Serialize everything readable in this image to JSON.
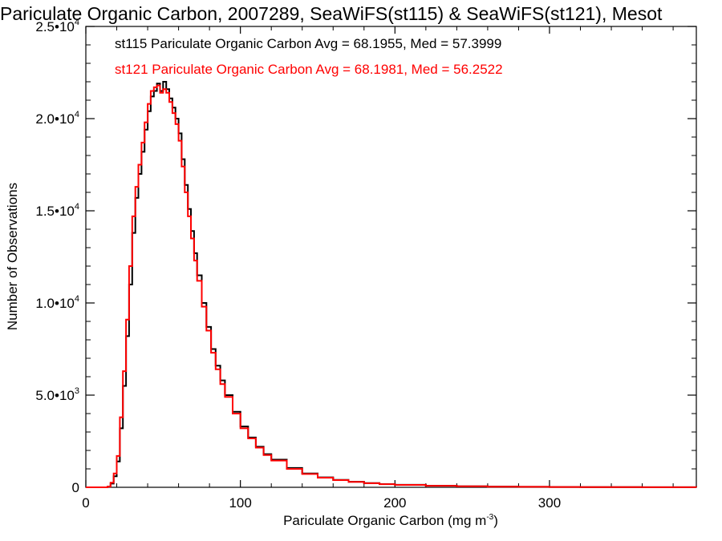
{
  "chart_data": {
    "type": "line",
    "title": "Pariculate Organic Carbon, 2007289, SeaWiFS(st115) & SeaWiFS(st121), Mesot",
    "xlabel": "Pariculate Organic Carbon (mg m",
    "xlabel_sup": "-3",
    "xlabel_suffix": ")",
    "ylabel": "Number of Observations",
    "xlim": [
      0,
      395
    ],
    "ylim": [
      0,
      25000
    ],
    "x_ticks": [
      {
        "value": 0,
        "label": "0"
      },
      {
        "value": 100,
        "label": "100"
      },
      {
        "value": 200,
        "label": "200"
      },
      {
        "value": 300,
        "label": "300"
      }
    ],
    "y_ticks": [
      {
        "value": 0,
        "mant": "0",
        "exp": ""
      },
      {
        "value": 5000,
        "mant": "5.0•10",
        "exp": "3"
      },
      {
        "value": 10000,
        "mant": "1.0•10",
        "exp": "4"
      },
      {
        "value": 15000,
        "mant": "1.5•10",
        "exp": "4"
      },
      {
        "value": 20000,
        "mant": "2.0•10",
        "exp": "4"
      },
      {
        "value": 25000,
        "mant": "2.5•10",
        "exp": "4"
      }
    ],
    "grid": false,
    "legend_position": "top-left",
    "x": [
      0,
      10,
      14,
      16,
      18,
      20,
      22,
      24,
      26,
      28,
      30,
      32,
      34,
      36,
      38,
      40,
      42,
      44,
      46,
      48,
      50,
      52,
      54,
      56,
      58,
      60,
      62,
      64,
      66,
      68,
      70,
      72,
      75,
      78,
      81,
      84,
      87,
      90,
      95,
      100,
      105,
      110,
      115,
      120,
      130,
      140,
      150,
      160,
      170,
      180,
      190,
      200,
      220,
      240,
      260,
      280,
      300,
      320,
      340,
      360,
      380,
      395
    ],
    "series": [
      {
        "name": "st115",
        "label": "st115 Pariculate Organic Carbon Avg = 68.1955, Med = 57.3999",
        "color": "#000000",
        "values": [
          0,
          0,
          30,
          200,
          600,
          1400,
          3200,
          5500,
          8200,
          11000,
          13800,
          15700,
          17000,
          18200,
          19400,
          20400,
          21200,
          21500,
          21900,
          21500,
          22000,
          21600,
          21100,
          20600,
          20000,
          19200,
          17800,
          16400,
          15100,
          13900,
          12700,
          11500,
          10000,
          8700,
          7500,
          6600,
          5800,
          5000,
          4100,
          3300,
          2700,
          2200,
          1800,
          1500,
          1050,
          750,
          540,
          400,
          300,
          230,
          175,
          135,
          85,
          55,
          38,
          25,
          17,
          12,
          8,
          5,
          3,
          2
        ]
      },
      {
        "name": "st121",
        "label": "st121 Pariculate Organic Carbon Avg = 68.1981, Med = 56.2522",
        "color": "#ff0000",
        "values": [
          0,
          0,
          40,
          250,
          750,
          1700,
          3800,
          6300,
          9100,
          12000,
          14700,
          16300,
          17500,
          18700,
          19800,
          20800,
          21500,
          21700,
          21800,
          21400,
          21600,
          21400,
          20900,
          20300,
          19700,
          18800,
          17400,
          16000,
          14700,
          13500,
          12300,
          11200,
          9800,
          8500,
          7300,
          6400,
          5600,
          4900,
          4000,
          3200,
          2650,
          2150,
          1750,
          1450,
          1000,
          720,
          520,
          390,
          290,
          220,
          170,
          130,
          82,
          53,
          36,
          24,
          16,
          11,
          7,
          5,
          3,
          2
        ]
      }
    ]
  }
}
